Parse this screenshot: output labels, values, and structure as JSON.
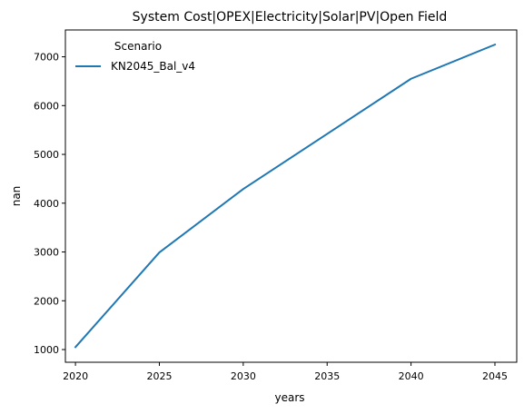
{
  "chart_data": {
    "type": "line",
    "title": "System Cost|OPEX|Electricity|Solar|PV|Open Field",
    "xlabel": "years",
    "ylabel": "nan",
    "x": [
      2020,
      2025,
      2030,
      2040,
      2045
    ],
    "series": [
      {
        "name": "KN2045_Bal_v4",
        "values": [
          1050,
          2990,
          4290,
          6550,
          7250
        ],
        "color": "#1f77b4"
      }
    ],
    "xlim": [
      2019.4,
      2046.3
    ],
    "ylim": [
      740,
      7550
    ],
    "xticks": [
      2020,
      2025,
      2030,
      2035,
      2040,
      2045
    ],
    "yticks": [
      1000,
      2000,
      3000,
      4000,
      5000,
      6000,
      7000
    ],
    "legend": {
      "title": "Scenario",
      "placement": "top-left"
    },
    "grid": false
  }
}
